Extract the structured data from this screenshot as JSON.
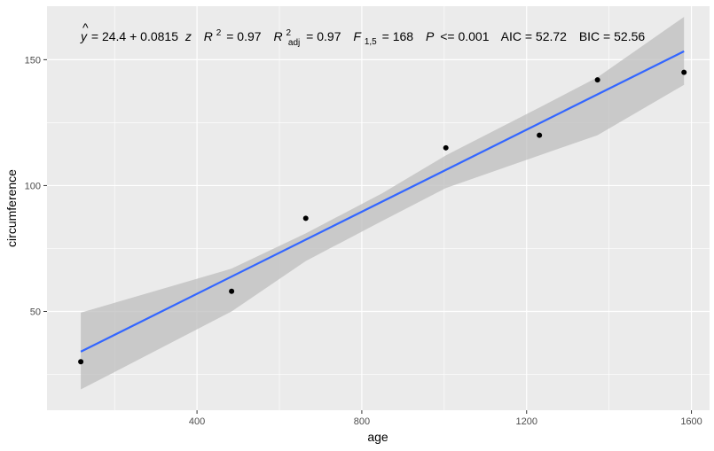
{
  "chart_data": {
    "type": "scatter",
    "xlabel": "age",
    "ylabel": "circumference",
    "xlim": [
      36,
      1644
    ],
    "ylim": [
      10.75,
      171.25
    ],
    "x_ticks": [
      400,
      800,
      1200,
      1600
    ],
    "y_ticks": [
      50,
      100,
      150
    ],
    "x_tick_labels": [
      "400",
      "800",
      "1200",
      "1600"
    ],
    "y_tick_labels": [
      "50",
      "100",
      "150"
    ],
    "grid": true,
    "points": [
      {
        "x": 118,
        "y": 30
      },
      {
        "x": 484,
        "y": 58
      },
      {
        "x": 664,
        "y": 87
      },
      {
        "x": 1004,
        "y": 115
      },
      {
        "x": 1231,
        "y": 120
      },
      {
        "x": 1372,
        "y": 142
      },
      {
        "x": 1582,
        "y": 145
      }
    ],
    "fit": {
      "intercept": 24.4,
      "slope": 0.0815,
      "x_range": [
        118,
        1582
      ],
      "confidence_band": [
        {
          "x": 118,
          "lower": 19,
          "upper": 49.5
        },
        {
          "x": 484,
          "lower": 50,
          "upper": 67
        },
        {
          "x": 664,
          "lower": 70,
          "upper": 81
        },
        {
          "x": 850,
          "lower": 86,
          "upper": 97
        },
        {
          "x": 1004,
          "lower": 99,
          "upper": 112
        },
        {
          "x": 1231,
          "lower": 112,
          "upper": 131
        },
        {
          "x": 1372,
          "lower": 120,
          "upper": 143
        },
        {
          "x": 1582,
          "lower": 140,
          "upper": 167
        }
      ],
      "color": "#3366FF",
      "band_color": "#BEBEBE"
    },
    "annotation": {
      "yhat": "y",
      "eq_main": "= 24.4 + 0.0815",
      "eq_var": "z",
      "r2_label": "R",
      "r2_sup": "2",
      "r2_value": "= 0.97",
      "r2adj_label": "R",
      "r2adj_sup": "2",
      "r2adj_sub": "adj",
      "r2adj_value": "= 0.97",
      "f_label": "F",
      "f_sub": "1,5",
      "f_value": "= 168",
      "p_label": "P",
      "p_value": "<= 0.001",
      "aic": "AIC = 52.72",
      "bic": "BIC = 52.56"
    },
    "colors": {
      "panel": "#EBEBEB",
      "grid_major": "#FFFFFF",
      "point": "#000000"
    }
  }
}
